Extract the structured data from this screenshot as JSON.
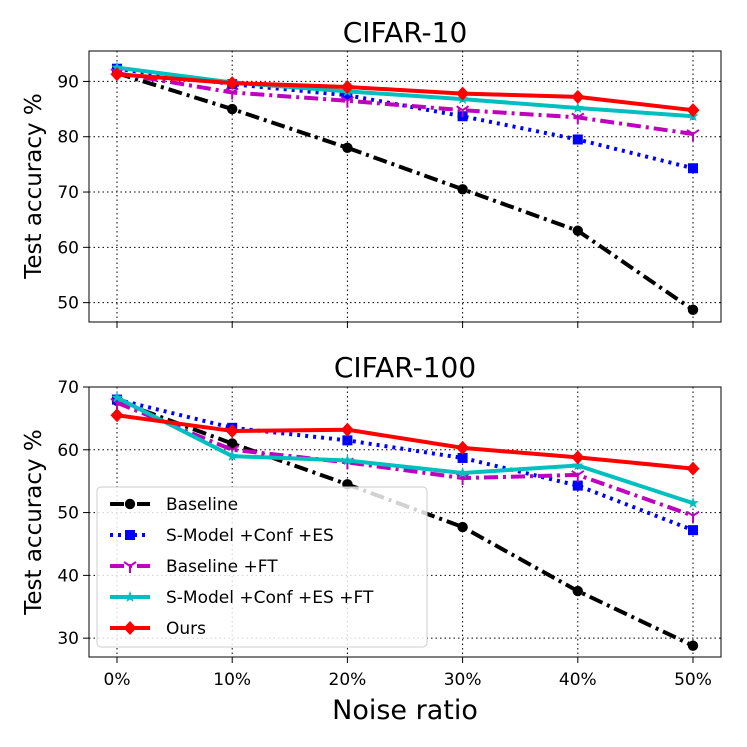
{
  "chart_data": [
    {
      "type": "line",
      "title": "CIFAR-10",
      "xlabel": "",
      "ylabel": "Test accuracy %",
      "categories": [
        "0%",
        "10%",
        "20%",
        "30%",
        "40%",
        "50%"
      ],
      "ylim": [
        46.5,
        95.5
      ],
      "yticks": [
        50,
        60,
        70,
        80,
        90
      ],
      "grid": true,
      "series": [
        {
          "name": "Baseline",
          "color": "#000000",
          "marker": "circle",
          "dash": "dashdot",
          "values": [
            91.5,
            85.0,
            78.0,
            70.5,
            63.0,
            48.7
          ]
        },
        {
          "name": "S-Model +Conf +ES",
          "color": "#0000ff",
          "marker": "square",
          "dash": "dotted",
          "values": [
            92.3,
            89.5,
            87.5,
            83.7,
            79.5,
            74.3
          ]
        },
        {
          "name": "Baseline +FT",
          "color": "#bf00bf",
          "marker": "tri",
          "dash": "dashdot",
          "values": [
            91.5,
            88.0,
            86.5,
            84.8,
            83.5,
            80.5
          ]
        },
        {
          "name": "S-Model +Conf +ES +FT",
          "color": "#00bfbf",
          "marker": "star",
          "dash": "solid",
          "values": [
            92.5,
            89.8,
            88.2,
            86.8,
            85.2,
            83.7
          ]
        },
        {
          "name": "Ours",
          "color": "#ff0000",
          "marker": "diamond",
          "dash": "solid",
          "values": [
            91.3,
            89.7,
            89.0,
            87.8,
            87.2,
            84.8
          ]
        }
      ]
    },
    {
      "type": "line",
      "title": "CIFAR-100",
      "xlabel": "Noise ratio",
      "ylabel": "Test accuracy %",
      "categories": [
        "0%",
        "10%",
        "20%",
        "30%",
        "40%",
        "50%"
      ],
      "ylim": [
        27,
        70
      ],
      "yticks": [
        30,
        40,
        50,
        60,
        70
      ],
      "grid": true,
      "legend": "lower-left",
      "series": [
        {
          "name": "Baseline",
          "color": "#000000",
          "marker": "circle",
          "dash": "dashdot",
          "values": [
            67.8,
            61.0,
            54.5,
            47.7,
            37.5,
            28.8
          ]
        },
        {
          "name": "S-Model +Conf +ES",
          "color": "#0000ff",
          "marker": "square",
          "dash": "dotted",
          "values": [
            68.0,
            63.5,
            61.5,
            58.7,
            54.3,
            47.2
          ]
        },
        {
          "name": "Baseline +FT",
          "color": "#bf00bf",
          "marker": "tri",
          "dash": "dashdot",
          "values": [
            67.5,
            60.0,
            58.0,
            55.5,
            56.0,
            49.5
          ]
        },
        {
          "name": "S-Model +Conf +ES +FT",
          "color": "#00bfbf",
          "marker": "star",
          "dash": "solid",
          "values": [
            68.3,
            59.0,
            58.3,
            56.3,
            57.5,
            51.5
          ]
        },
        {
          "name": "Ours",
          "color": "#ff0000",
          "marker": "diamond",
          "dash": "solid",
          "values": [
            65.5,
            63.0,
            63.2,
            60.3,
            58.8,
            57.0
          ]
        }
      ]
    }
  ]
}
